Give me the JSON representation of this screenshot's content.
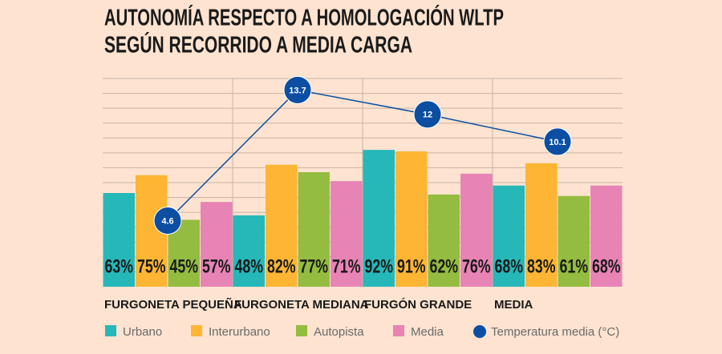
{
  "chart_data": {
    "type": "bar",
    "title": [
      "AUTONOMÍA RESPECTO A HOMOLOGACIÓN WLTP",
      "SEGÚN RECORRIDO A MEDIA CARGA"
    ],
    "categories": [
      "FURGONETA PEQUEÑA",
      "FURGONETA MEDIANA",
      "FURGÓN GRANDE",
      "MEDIA"
    ],
    "series": [
      {
        "name": "Urbano",
        "color": "#26b8b9",
        "values": [
          63,
          48,
          92,
          68
        ],
        "value_labels": [
          "63%",
          "48%",
          "92%",
          "68%"
        ]
      },
      {
        "name": "Interurbano",
        "color": "#fdb533",
        "values": [
          75,
          82,
          91,
          83
        ],
        "value_labels": [
          "75%",
          "82%",
          "91%",
          "83%"
        ]
      },
      {
        "name": "Autopista",
        "color": "#94bc40",
        "values": [
          45,
          77,
          62,
          61
        ],
        "value_labels": [
          "45%",
          "77%",
          "62%",
          "61%"
        ]
      },
      {
        "name": "Media",
        "color": "#e883b6",
        "values": [
          57,
          71,
          76,
          68
        ],
        "value_labels": [
          "57%",
          "71%",
          "76%",
          "68%"
        ]
      },
      {
        "name": "Temperatura media (°C)",
        "color": "#0b4ea2",
        "type": "line",
        "axis": "y2",
        "values": [
          4.6,
          13.7,
          12,
          10.1
        ]
      }
    ],
    "ylim": [
      0,
      140
    ],
    "yticks": [
      10,
      20,
      30,
      40,
      50,
      60,
      70,
      80,
      90,
      100,
      110,
      120,
      130,
      140
    ],
    "y2lim": [
      0,
      14.5
    ],
    "grid": true
  }
}
